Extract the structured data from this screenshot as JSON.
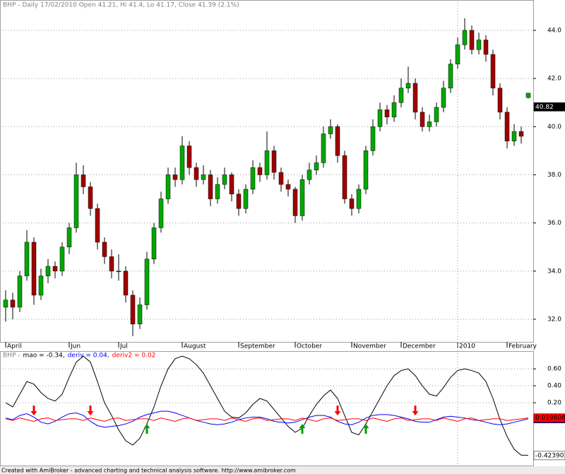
{
  "chart_data": [
    {
      "type": "candlestick",
      "title": "BHP - Daily 17/02/2010 Open 41.21, Hi 41.4, Lo 41.17, Close 41.39 (2.1%)",
      "categories": [
        "April",
        null,
        null,
        null,
        null,
        null,
        null,
        null,
        null,
        "Jun",
        null,
        null,
        null,
        null,
        null,
        null,
        "Jul",
        null,
        null,
        null,
        null,
        null,
        null,
        null,
        null,
        "August",
        null,
        null,
        null,
        null,
        null,
        null,
        null,
        "September",
        null,
        null,
        null,
        null,
        null,
        null,
        null,
        "October",
        null,
        null,
        null,
        null,
        null,
        null,
        null,
        "November",
        null,
        null,
        null,
        null,
        null,
        null,
        "December",
        null,
        null,
        null,
        null,
        null,
        null,
        null,
        "2010",
        null,
        null,
        null,
        null,
        null,
        null,
        "February",
        null,
        null,
        null
      ],
      "candles": [
        [
          32.5,
          33.2,
          31.9,
          32.8
        ],
        [
          32.8,
          33.1,
          32.0,
          32.5
        ],
        [
          32.5,
          34.0,
          32.3,
          33.8
        ],
        [
          33.8,
          35.7,
          33.6,
          35.2
        ],
        [
          35.2,
          35.4,
          32.6,
          33.0
        ],
        [
          33.0,
          34.1,
          32.8,
          33.8
        ],
        [
          33.8,
          34.5,
          33.5,
          34.2
        ],
        [
          34.2,
          34.4,
          33.7,
          34.0
        ],
        [
          34.0,
          35.2,
          33.8,
          35.0
        ],
        [
          35.0,
          36.0,
          34.7,
          35.8
        ],
        [
          35.8,
          38.5,
          35.6,
          38.0
        ],
        [
          38.0,
          38.4,
          37.2,
          37.5
        ],
        [
          37.5,
          37.7,
          36.3,
          36.6
        ],
        [
          36.6,
          36.8,
          34.9,
          35.2
        ],
        [
          35.2,
          35.4,
          34.3,
          34.6
        ],
        [
          34.6,
          34.9,
          33.7,
          34.0
        ],
        [
          34.0,
          34.7,
          33.6,
          34.0
        ],
        [
          34.0,
          34.2,
          32.7,
          33.0
        ],
        [
          33.0,
          33.2,
          31.3,
          31.8
        ],
        [
          31.8,
          32.9,
          31.6,
          32.6
        ],
        [
          32.6,
          34.8,
          32.4,
          34.5
        ],
        [
          34.5,
          36.0,
          34.3,
          35.8
        ],
        [
          35.8,
          37.3,
          35.6,
          37.0
        ],
        [
          37.0,
          38.3,
          36.8,
          38.0
        ],
        [
          38.0,
          38.3,
          37.5,
          37.8
        ],
        [
          37.8,
          39.6,
          37.6,
          39.2
        ],
        [
          39.2,
          39.4,
          38.0,
          38.3
        ],
        [
          38.3,
          38.5,
          37.5,
          37.8
        ],
        [
          37.8,
          38.4,
          37.6,
          38.0
        ],
        [
          38.0,
          38.2,
          36.7,
          37.0
        ],
        [
          37.0,
          37.9,
          36.8,
          37.6
        ],
        [
          37.6,
          38.3,
          37.4,
          38.0
        ],
        [
          38.0,
          38.1,
          36.9,
          37.2
        ],
        [
          37.2,
          37.4,
          36.3,
          36.6
        ],
        [
          36.6,
          37.6,
          36.4,
          37.4
        ],
        [
          37.4,
          38.6,
          37.2,
          38.3
        ],
        [
          38.3,
          38.5,
          37.7,
          38.0
        ],
        [
          38.0,
          39.8,
          37.8,
          39.0
        ],
        [
          39.0,
          39.2,
          37.8,
          38.1
        ],
        [
          38.1,
          38.3,
          37.3,
          37.6
        ],
        [
          37.6,
          37.8,
          37.1,
          37.4
        ],
        [
          37.4,
          37.5,
          36.0,
          36.3
        ],
        [
          36.3,
          38.0,
          36.1,
          37.8
        ],
        [
          37.8,
          38.5,
          37.6,
          38.2
        ],
        [
          38.2,
          38.8,
          38.0,
          38.5
        ],
        [
          38.5,
          40.0,
          38.3,
          39.7
        ],
        [
          39.7,
          40.3,
          39.5,
          40.0
        ],
        [
          40.0,
          40.1,
          38.5,
          38.8
        ],
        [
          38.8,
          39.0,
          36.8,
          37.0
        ],
        [
          37.0,
          37.2,
          36.3,
          36.6
        ],
        [
          36.6,
          37.6,
          36.4,
          37.4
        ],
        [
          37.4,
          39.2,
          37.2,
          39.0
        ],
        [
          39.0,
          40.3,
          38.8,
          40.0
        ],
        [
          40.0,
          41.0,
          39.8,
          40.7
        ],
        [
          40.7,
          40.9,
          40.1,
          40.4
        ],
        [
          40.4,
          41.3,
          40.2,
          41.0
        ],
        [
          41.0,
          42.0,
          40.8,
          41.6
        ],
        [
          41.6,
          42.5,
          41.4,
          41.8
        ],
        [
          41.8,
          42.0,
          40.3,
          40.6
        ],
        [
          40.6,
          40.8,
          39.8,
          40.0
        ],
        [
          40.0,
          40.5,
          39.8,
          40.2
        ],
        [
          40.2,
          41.0,
          40.0,
          40.8
        ],
        [
          40.8,
          41.9,
          40.6,
          41.6
        ],
        [
          41.6,
          42.8,
          41.4,
          42.6
        ],
        [
          42.6,
          43.7,
          42.4,
          43.4
        ],
        [
          43.4,
          44.5,
          43.2,
          44.0
        ],
        [
          44.0,
          44.2,
          43.0,
          43.2
        ],
        [
          43.2,
          43.9,
          43.0,
          43.6
        ],
        [
          43.6,
          43.8,
          42.7,
          43.0
        ],
        [
          43.0,
          43.2,
          41.3,
          41.6
        ],
        [
          41.6,
          41.8,
          40.3,
          40.6
        ],
        [
          40.6,
          40.8,
          39.1,
          39.4
        ],
        [
          39.4,
          40.1,
          39.2,
          39.8
        ],
        [
          39.8,
          40.0,
          39.3,
          39.6
        ],
        [
          41.21,
          41.4,
          41.17,
          41.39
        ]
      ],
      "up_color": "#00a800",
      "down_color": "#a00000",
      "ylim": [
        31.06,
        45.26
      ],
      "yticks": [
        {
          "value": 32,
          "label": "32.0"
        },
        {
          "value": 34,
          "label": "34.0"
        },
        {
          "value": 36,
          "label": "36.0"
        },
        {
          "value": 38,
          "label": "38.0"
        },
        {
          "value": 40,
          "label": "40.0"
        },
        {
          "value": 42,
          "label": "42.0"
        },
        {
          "value": 44,
          "label": "44.0"
        }
      ],
      "price_marker": 40.82,
      "grid": true
    },
    {
      "type": "line",
      "legend_title": "BHP -",
      "series": [
        {
          "name": "mao = -0.34,",
          "color": "#000000",
          "last_value": -0.423901,
          "values": [
            0.2,
            0.15,
            0.3,
            0.45,
            0.42,
            0.32,
            0.25,
            0.22,
            0.3,
            0.5,
            0.68,
            0.75,
            0.68,
            0.45,
            0.2,
            0.05,
            -0.12,
            -0.25,
            -0.3,
            -0.22,
            -0.05,
            0.15,
            0.4,
            0.6,
            0.72,
            0.75,
            0.72,
            0.65,
            0.55,
            0.4,
            0.25,
            0.1,
            0.03,
            0.02,
            0.08,
            0.18,
            0.25,
            0.22,
            0.12,
            0.02,
            -0.08,
            -0.15,
            -0.1,
            0.05,
            0.18,
            0.28,
            0.35,
            0.25,
            0.05,
            -0.15,
            -0.18,
            -0.05,
            0.1,
            0.25,
            0.4,
            0.52,
            0.58,
            0.6,
            0.52,
            0.4,
            0.3,
            0.28,
            0.38,
            0.5,
            0.58,
            0.6,
            0.58,
            0.55,
            0.45,
            0.25,
            0.0,
            -0.2,
            -0.35,
            -0.42,
            -0.42
          ]
        },
        {
          "name": "deriv = 0.04,",
          "color": "#0000ff",
          "last_value": 0.010737,
          "values": [
            0.02,
            0.0,
            0.05,
            0.07,
            0.03,
            -0.03,
            -0.05,
            -0.02,
            0.03,
            0.07,
            0.08,
            0.05,
            -0.02,
            -0.07,
            -0.09,
            -0.08,
            -0.07,
            -0.05,
            -0.02,
            0.03,
            0.06,
            0.08,
            0.1,
            0.1,
            0.08,
            0.05,
            0.02,
            -0.01,
            -0.03,
            -0.05,
            -0.06,
            -0.05,
            -0.03,
            0.0,
            0.02,
            0.03,
            0.03,
            0.01,
            -0.02,
            -0.03,
            -0.04,
            -0.03,
            0.0,
            0.03,
            0.05,
            0.05,
            0.03,
            -0.02,
            -0.05,
            -0.06,
            -0.03,
            0.02,
            0.05,
            0.06,
            0.06,
            0.05,
            0.03,
            0.01,
            -0.02,
            -0.03,
            -0.03,
            0.0,
            0.03,
            0.04,
            0.03,
            0.02,
            0.0,
            -0.01,
            -0.03,
            -0.05,
            -0.06,
            -0.05,
            -0.03,
            -0.01,
            0.01
          ]
        },
        {
          "name": "deriv2 = 0.02",
          "color": "#ff0000",
          "last_value": 0.019608,
          "values": [
            0.01,
            -0.01,
            0.02,
            0.0,
            -0.02,
            0.01,
            0.02,
            -0.01,
            0.0,
            0.01,
            0.01,
            -0.01,
            0.02,
            0.0,
            -0.02,
            0.01,
            0.02,
            -0.01,
            0.0,
            0.01,
            0.01,
            -0.01,
            0.02,
            0.0,
            -0.02,
            0.01,
            0.02,
            -0.01,
            0.0,
            0.01,
            0.01,
            -0.01,
            0.02,
            0.0,
            -0.02,
            0.01,
            0.02,
            -0.01,
            0.0,
            0.01,
            0.01,
            -0.01,
            0.02,
            0.0,
            -0.02,
            0.01,
            0.02,
            -0.01,
            0.0,
            0.01,
            0.01,
            -0.01,
            0.02,
            0.0,
            -0.02,
            0.01,
            0.02,
            -0.01,
            0.0,
            0.01,
            0.01,
            -0.01,
            0.02,
            0.0,
            -0.02,
            0.01,
            0.02,
            -0.01,
            0.0,
            0.01,
            0.01,
            -0.01,
            0.0,
            0.01,
            0.02
          ]
        }
      ],
      "sell_signals": [
        4,
        12,
        47,
        58
      ],
      "sell_color": "#ff0000",
      "buy_signals": [
        20,
        42,
        51
      ],
      "buy_color": "#00a000",
      "ylim": [
        -0.55,
        0.81
      ],
      "yticks": [
        {
          "value": 0.2,
          "label": "0.20"
        },
        {
          "value": 0.4,
          "label": "0.40"
        },
        {
          "value": 0.6,
          "label": "0.60"
        }
      ],
      "grid": true
    }
  ],
  "footer": "Created with AmiBroker - advanced charting and technical analysis software. http://www.amibroker.com"
}
